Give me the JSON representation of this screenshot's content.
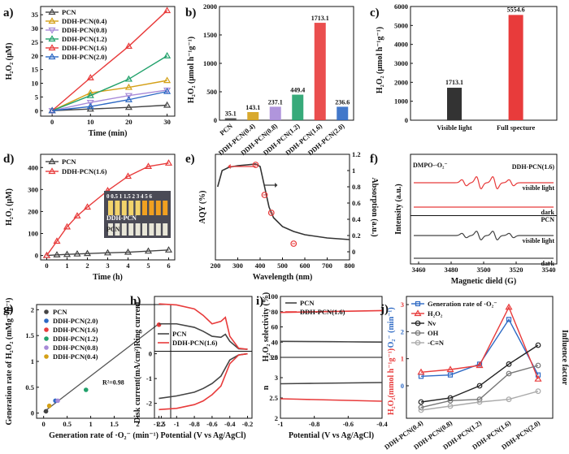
{
  "colors": {
    "PCN": "#444444",
    "DDH-PCN(0.4)": "#d4a017",
    "DDH-PCN(0.8)": "#a78ad8",
    "DDH-PCN(1.2)": "#21a16b",
    "DDH-PCN(1.6)": "#e83b3b",
    "DDH-PCN(2.0)": "#2d69c4"
  },
  "chart_data": [
    {
      "panel": "a)",
      "type": "line",
      "xlabel": "Time (min)",
      "ylabel": "H₂O₂ (μM)",
      "xlim": [
        -3,
        32
      ],
      "ylim": [
        -2,
        38
      ],
      "xticks": [
        0,
        10,
        20,
        30
      ],
      "yticks": [
        0,
        5,
        10,
        15,
        20,
        25,
        30,
        35
      ],
      "x": [
        0,
        10,
        20,
        30
      ],
      "series": [
        {
          "name": "PCN",
          "values": [
            0,
            0.6,
            1.2,
            2.0
          ]
        },
        {
          "name": "DDH-PCN(0.4)",
          "values": [
            0,
            6.5,
            8.5,
            11.0
          ]
        },
        {
          "name": "DDH-PCN(0.8)",
          "values": [
            0,
            3.0,
            5.5,
            7.5
          ]
        },
        {
          "name": "DDH-PCN(1.2)",
          "values": [
            0,
            5.5,
            11.5,
            20.0
          ]
        },
        {
          "name": "DDH-PCN(1.6)",
          "values": [
            0,
            12.0,
            23.5,
            36.5
          ]
        },
        {
          "name": "DDH-PCN(2.0)",
          "values": [
            0,
            1.5,
            4.0,
            7.0
          ]
        }
      ],
      "legend": "top-left"
    },
    {
      "panel": "b)",
      "type": "bar",
      "ylabel": "H₂O₂ (μmol h⁻¹g⁻¹)",
      "ylim": [
        0,
        2000
      ],
      "yticks": [
        0,
        500,
        1000,
        1500,
        2000
      ],
      "categories": [
        "PCN",
        "DDH-PCN(0.4)",
        "DDH-PCN(0.8)",
        "DDH-PCN(1.2)",
        "DDH-PCN(1.6)",
        "DDH-PCN(2.0)"
      ],
      "values": [
        35.1,
        143.1,
        237.1,
        449.4,
        1713.1,
        236.6
      ],
      "labels": [
        "35.1",
        "143.1",
        "237.1",
        "449.4",
        "1713.1",
        "236.6"
      ]
    },
    {
      "panel": "c)",
      "type": "bar",
      "ylabel": "H₂O₂ (μmol h⁻¹g⁻¹)",
      "ylim": [
        0,
        6000
      ],
      "yticks": [
        0,
        1000,
        2000,
        3000,
        4000,
        5000,
        6000
      ],
      "categories": [
        "Visible light",
        "Full specture"
      ],
      "values": [
        1713.1,
        5554.6
      ],
      "labels": [
        "1713.1",
        "5554.6"
      ]
    },
    {
      "panel": "d)",
      "type": "line",
      "xlabel": "Time (h)",
      "ylabel": "H₂O₂ (μM)",
      "xlim": [
        -0.3,
        6.3
      ],
      "ylim": [
        -20,
        460
      ],
      "xticks": [
        0,
        1,
        2,
        3,
        4,
        5,
        6
      ],
      "yticks": [
        0,
        100,
        200,
        300,
        400
      ],
      "series": [
        {
          "name": "PCN",
          "x": [
            0,
            0.5,
            1,
            1.5,
            2,
            3,
            4,
            5,
            6
          ],
          "values": [
            0,
            3,
            5,
            7,
            9,
            12,
            15,
            20,
            25
          ]
        },
        {
          "name": "DDH-PCN(1.6)",
          "x": [
            0,
            0.5,
            1,
            1.5,
            2,
            3,
            4,
            5,
            6
          ],
          "values": [
            0,
            65,
            130,
            180,
            220,
            295,
            360,
            405,
            420
          ]
        }
      ],
      "inset": {
        "top_label": "0 0.5 1 1.5 2 3 4 5 6",
        "labels": [
          "DDH-PCN",
          "PCN"
        ]
      },
      "legend": "top-left"
    },
    {
      "panel": "e)",
      "type": "line",
      "xlabel": "Wavelength (nm)",
      "ylabel": "AQY (%)",
      "ylabel_right": "Absorption (a.u.)",
      "xlim": [
        200,
        800
      ],
      "xticks": [
        200,
        300,
        400,
        500,
        600,
        700,
        800
      ],
      "ylim_right": [
        -0.1,
        1.2
      ],
      "yticks_right": [
        0.0,
        0.2,
        0.4,
        0.6,
        0.8,
        1.0,
        1.2
      ],
      "absorption": {
        "x": [
          210,
          230,
          260,
          300,
          340,
          380,
          400,
          420,
          440,
          460,
          500,
          550,
          600,
          700,
          800
        ],
        "values": [
          0.8,
          1.0,
          1.04,
          1.06,
          1.07,
          1.08,
          1.05,
          0.8,
          0.55,
          0.42,
          0.31,
          0.25,
          0.21,
          0.17,
          0.15
        ]
      },
      "aqy_points": {
        "x": [
          380,
          420,
          450,
          550
        ],
        "values": [
          1.07,
          0.7,
          0.48,
          0.1
        ]
      }
    },
    {
      "panel": "f)",
      "type": "line",
      "xlabel": "Magnetic dield (G)",
      "ylabel": "Intensity (a.u.)",
      "xlim": [
        3455,
        3545
      ],
      "xticks": [
        3460,
        3480,
        3500,
        3520,
        3540
      ],
      "title_label": "DMPO-·O₂⁻",
      "traces": [
        {
          "name": "DDH-PCN(1.6)",
          "condition": "visible light"
        },
        {
          "name": "DDH-PCN(1.6)",
          "condition": "dark"
        },
        {
          "name": "PCN",
          "condition": "visible light"
        },
        {
          "name": "PCN",
          "condition": "dark"
        }
      ],
      "peaks": [
        3488,
        3497,
        3507,
        3517
      ]
    },
    {
      "panel": "g)",
      "type": "scatter",
      "xlabel": "Generation rate of ·O₂⁻ (min⁻¹)",
      "ylabel": "Generation rate of H₂O₂ (mMg⁻¹h⁻¹)",
      "xlim": [
        -0.15,
        2.7
      ],
      "ylim": [
        -0.1,
        2.1
      ],
      "xticks": [
        0.0,
        0.5,
        1.0,
        1.5,
        2.0,
        2.5
      ],
      "yticks": [
        0.0,
        0.5,
        1.0,
        1.5,
        2.0
      ],
      "points": [
        {
          "name": "PCN",
          "x": 0.05,
          "y": 0.035
        },
        {
          "name": "DDH-PCN(2.0)",
          "x": 0.25,
          "y": 0.24
        },
        {
          "name": "DDH-PCN(1.6)",
          "x": 2.45,
          "y": 1.71
        },
        {
          "name": "DDH-PCN(1.2)",
          "x": 0.9,
          "y": 0.45
        },
        {
          "name": "DDH-PCN(0.8)",
          "x": 0.3,
          "y": 0.24
        },
        {
          "name": "DDH-PCN(0.4)",
          "x": 0.12,
          "y": 0.14
        }
      ],
      "fit": {
        "x": [
          0,
          2.45
        ],
        "y": [
          0.02,
          1.73
        ]
      },
      "annotation": "R²=0.98"
    },
    {
      "panel": "h)",
      "type": "line",
      "xlabel": "Potential (V vs Ag/AgCl)",
      "ylabel_top": "Ring current",
      "ylabel_bottom": "Disk current(mA/cm²)",
      "xlim": [
        -1.25,
        -0.15
      ],
      "xticks": [
        -1.2,
        -1.0,
        -0.8,
        -0.6,
        -0.4,
        -0.2
      ],
      "yticks_bottom": [
        0,
        -1,
        -2
      ],
      "series": [
        {
          "name": "PCN",
          "ring_x": [
            -1.2,
            -1.0,
            -0.8,
            -0.7,
            -0.6,
            -0.5,
            -0.45,
            -0.4,
            -0.3,
            -0.2
          ],
          "ring": [
            0.55,
            0.55,
            0.48,
            0.4,
            0.3,
            0.28,
            0.34,
            0.2,
            0.05,
            0.04
          ],
          "disk_x": [
            -1.2,
            -1.0,
            -0.8,
            -0.7,
            -0.6,
            -0.5,
            -0.4,
            -0.3,
            -0.2
          ],
          "disk": [
            -1.8,
            -1.7,
            -1.55,
            -1.4,
            -1.2,
            -0.9,
            -0.25,
            -0.05,
            0
          ]
        },
        {
          "name": "DDH-PCN(1.6)",
          "ring_x": [
            -1.2,
            -1.0,
            -0.8,
            -0.7,
            -0.6,
            -0.5,
            -0.45,
            -0.4,
            -0.3,
            -0.2
          ],
          "ring": [
            0.95,
            0.93,
            0.85,
            0.72,
            0.55,
            0.6,
            0.68,
            0.3,
            0.06,
            0.04
          ],
          "disk_x": [
            -1.2,
            -1.0,
            -0.8,
            -0.7,
            -0.6,
            -0.5,
            -0.4,
            -0.3,
            -0.2
          ],
          "disk": [
            -2.25,
            -2.2,
            -2.05,
            -1.9,
            -1.65,
            -1.3,
            -0.4,
            -0.05,
            0
          ]
        }
      ]
    },
    {
      "panel": "i)",
      "type": "line",
      "xlabel": "Potential (V vs Ag/AgCl)",
      "ylabel_top": "H₂O₂ selectivity (%)",
      "ylabel_bottom": "n",
      "xlim": [
        -1.0,
        -0.4
      ],
      "xticks": [
        -1.0,
        -0.8,
        -0.6,
        -0.4
      ],
      "ylim_top": [
        20,
        100
      ],
      "yticks_top": [
        20,
        40,
        60,
        80,
        100
      ],
      "ylim_bottom": [
        2.0,
        3.5
      ],
      "yticks_bottom": [
        2.0,
        2.5,
        3.0,
        3.5
      ],
      "series": [
        {
          "name": "PCN",
          "selectivity": 41,
          "n": 2.85
        },
        {
          "name": "DDH-PCN(1.6)",
          "selectivity": 79,
          "n": 2.48
        }
      ]
    },
    {
      "panel": "j)",
      "type": "line",
      "ylabel_left_top": "·O₂⁻ (min⁻¹)",
      "ylabel_left_bottom": "H₂O₂(mmol h⁻¹g⁻¹)",
      "ylabel_right": "Influence factor",
      "categories": [
        "DDH-PCN(0.4)",
        "DDH-PCN(0.8)",
        "DDH-PCN(1.2)",
        "DDH-PCN(1.6)",
        "DDH-PCN(2.0)"
      ],
      "yticks_left_top": [
        0,
        1,
        2,
        3
      ],
      "yticks_left_bottom": [
        0,
        1,
        2,
        3
      ],
      "series": [
        {
          "name": "Generation rate of ·O₂⁻",
          "values": [
            0.35,
            0.4,
            0.8,
            2.45,
            0.4
          ]
        },
        {
          "name": "H₂O₂",
          "values": [
            0.5,
            0.6,
            0.75,
            2.9,
            0.25
          ]
        },
        {
          "name": "Nv",
          "values": [
            -0.6,
            -0.45,
            0.0,
            0.8,
            1.5
          ]
        },
        {
          "name": "OH",
          "values": [
            -0.8,
            -0.55,
            -0.5,
            0.45,
            0.75
          ]
        },
        {
          "name": "-C≡N",
          "values": [
            -0.9,
            -0.75,
            -0.6,
            -0.5,
            -0.2
          ]
        }
      ],
      "series_colors": [
        "#2d69c4",
        "#e83b3b",
        "#222222",
        "#777777",
        "#aaaaaa"
      ]
    }
  ]
}
